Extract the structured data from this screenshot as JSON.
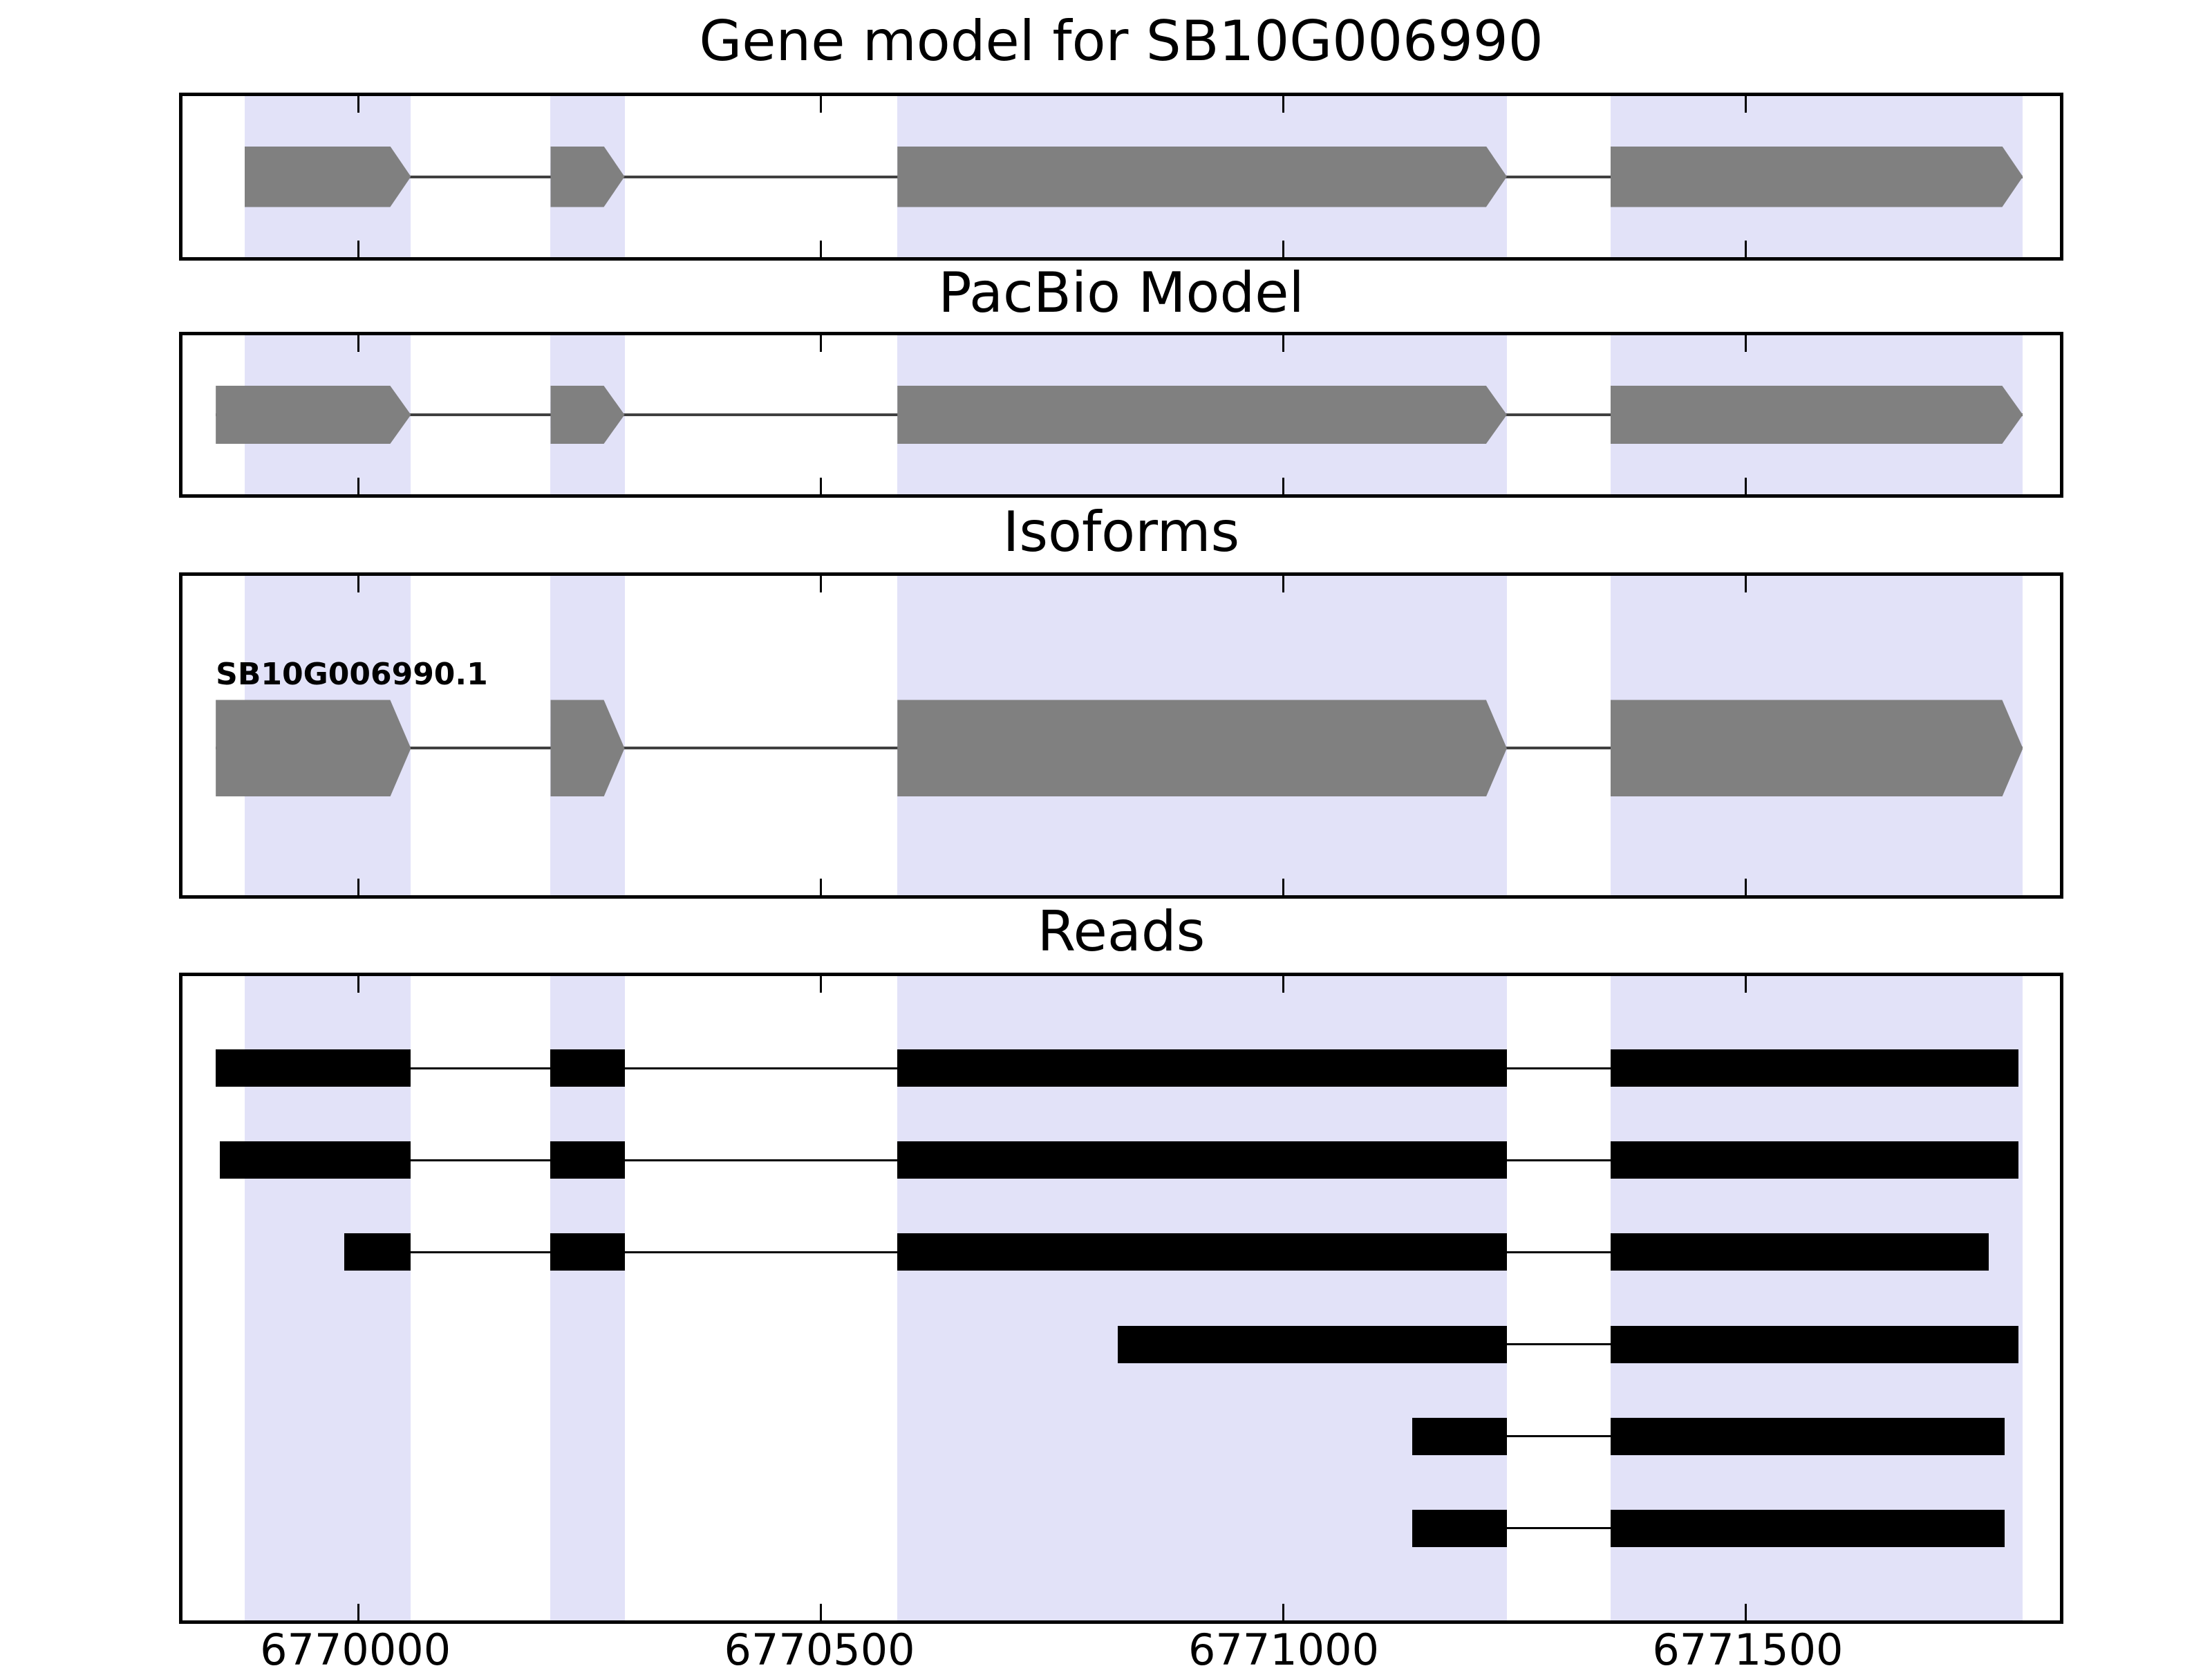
{
  "figure": {
    "colors": {
      "background": "#ffffff",
      "panel_border": "#000000",
      "highlight_band": "#e2e2f8",
      "gene_fill": "#808080",
      "read_fill": "#000000",
      "intron_line": "#404040",
      "text": "#000000"
    }
  },
  "chart_data": {
    "type": "genomic-tracks",
    "title": "Gene model for SB10G006990",
    "xlabel": "",
    "ylabel": "",
    "legend": "none",
    "grid": false,
    "axis": {
      "xmin": 6769810,
      "xmax": 6771840,
      "ticks": [
        6770000,
        6770500,
        6771000,
        6771500
      ],
      "tick_labels": [
        "6770000",
        "6770500",
        "6771000",
        "6771500"
      ]
    },
    "highlight_regions": [
      [
        6769877,
        6770057
      ],
      [
        6770208,
        6770288
      ],
      [
        6770583,
        6771242
      ],
      [
        6771354,
        6771800
      ]
    ],
    "panels": [
      {
        "id": "gene-model",
        "title": "Gene model for SB10G006990",
        "kind": "model",
        "features": [
          {
            "label": "",
            "strand": "+",
            "exons": [
              [
                6769877,
                6770057
              ],
              [
                6770208,
                6770288
              ],
              [
                6770583,
                6771242
              ],
              [
                6771354,
                6771800
              ]
            ]
          }
        ]
      },
      {
        "id": "pacbio-model",
        "title": "PacBio Model",
        "kind": "model",
        "features": [
          {
            "label": "",
            "strand": "+",
            "exons": [
              [
                6769846,
                6770057
              ],
              [
                6770208,
                6770288
              ],
              [
                6770583,
                6771242
              ],
              [
                6771354,
                6771800
              ]
            ]
          }
        ]
      },
      {
        "id": "isoforms",
        "title": "Isoforms",
        "kind": "model",
        "features": [
          {
            "label": "SB10G006990.1",
            "strand": "+",
            "exons": [
              [
                6769846,
                6770057
              ],
              [
                6770208,
                6770288
              ],
              [
                6770583,
                6771242
              ],
              [
                6771354,
                6771800
              ]
            ]
          }
        ]
      },
      {
        "id": "reads",
        "title": "Reads",
        "kind": "reads",
        "reads": [
          {
            "segments": [
              [
                6769846,
                6770057
              ],
              [
                6770208,
                6770288
              ],
              [
                6770583,
                6771242
              ],
              [
                6771354,
                6771795
              ]
            ]
          },
          {
            "segments": [
              [
                6769850,
                6770057
              ],
              [
                6770208,
                6770288
              ],
              [
                6770583,
                6771242
              ],
              [
                6771354,
                6771795
              ]
            ]
          },
          {
            "segments": [
              [
                6769985,
                6770057
              ],
              [
                6770208,
                6770288
              ],
              [
                6770583,
                6771242
              ],
              [
                6771354,
                6771763
              ]
            ]
          },
          {
            "segments": [
              [
                6770821,
                6771242
              ],
              [
                6771354,
                6771795
              ]
            ]
          },
          {
            "segments": [
              [
                6771140,
                6771242
              ],
              [
                6771354,
                6771780
              ]
            ]
          },
          {
            "segments": [
              [
                6771140,
                6771242
              ],
              [
                6771354,
                6771780
              ]
            ]
          }
        ]
      }
    ]
  }
}
